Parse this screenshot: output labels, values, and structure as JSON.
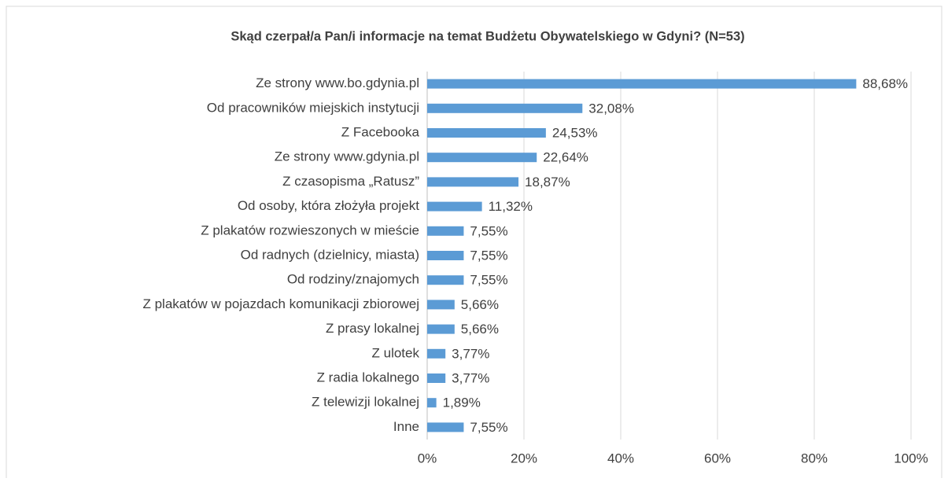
{
  "chart_data": {
    "type": "bar",
    "orientation": "horizontal",
    "title": "Skąd czerpał/a Pan/i informacje na temat Budżetu Obywatelskiego w Gdyni? (N=53)",
    "categories": [
      "Ze strony www.bo.gdynia.pl",
      "Od pracowników miejskich instytucji",
      "Z Facebooka",
      "Ze strony www.gdynia.pl",
      "Z czasopisma „Ratusz”",
      "Od osoby, która złożyła projekt",
      "Z plakatów rozwieszonych w mieście",
      "Od radnych (dzielnicy, miasta)",
      "Od rodziny/znajomych",
      "Z plakatów w pojazdach komunikacji zbiorowej",
      "Z prasy lokalnej",
      "Z ulotek",
      "Z radia lokalnego",
      "Z telewizji lokalnej",
      "Inne"
    ],
    "values": [
      88.68,
      32.08,
      24.53,
      22.64,
      18.87,
      11.32,
      7.55,
      7.55,
      7.55,
      5.66,
      5.66,
      3.77,
      3.77,
      1.89,
      7.55
    ],
    "value_labels": [
      "88,68%",
      "32,08%",
      "24,53%",
      "22,64%",
      "18,87%",
      "11,32%",
      "7,55%",
      "7,55%",
      "7,55%",
      "5,66%",
      "5,66%",
      "3,77%",
      "3,77%",
      "1,89%",
      "7,55%"
    ],
    "color": "#5b9bd5",
    "xlim": [
      0,
      100
    ],
    "xticks": [
      {
        "value": 0,
        "label": "0%"
      },
      {
        "value": 20,
        "label": "20%"
      },
      {
        "value": 40,
        "label": "40%"
      },
      {
        "value": 60,
        "label": "60%"
      },
      {
        "value": 80,
        "label": "80%"
      },
      {
        "value": 100,
        "label": "100%"
      }
    ],
    "grid": true
  }
}
